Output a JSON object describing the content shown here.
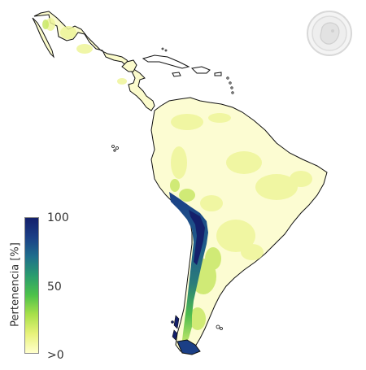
{
  "legend": {
    "title": "Pertenencia [%]",
    "tick_max": "100",
    "tick_mid": "50",
    "tick_min": ">0",
    "colors": [
      "#ffffcc",
      "#e8f27a",
      "#a8e04a",
      "#4dc24a",
      "#2a9c6e",
      "#1f6e8c",
      "#1b3f86",
      "#14206b"
    ]
  },
  "map": {
    "ocean_color": "#ffffff",
    "coast_color": "#111111",
    "low_color": "#fbfbcc",
    "high_color": "#14206b"
  },
  "logo": {
    "description_icon": "institution-seal-icon"
  }
}
